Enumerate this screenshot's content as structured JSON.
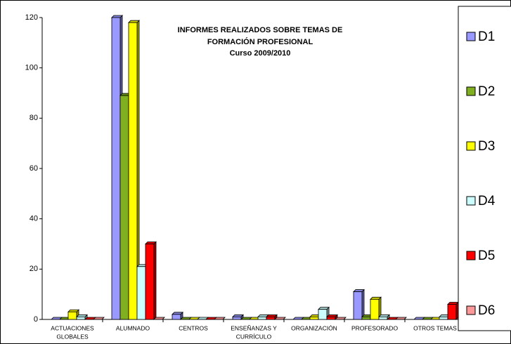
{
  "chart_data": {
    "type": "bar",
    "title": [
      "INFORMES REALIZADOS SOBRE TEMAS DE",
      "FORMACIÓN PROFESIONAL"
    ],
    "subtitle": "Curso 2009/2010",
    "categories": [
      [
        "ACTUACIONES",
        "GLOBALES"
      ],
      [
        "ALUMNADO"
      ],
      [
        "CENTROS"
      ],
      [
        "ENSEÑANZAS Y",
        "CURRÍCULO"
      ],
      [
        "ORGANIZACIÓN"
      ],
      [
        "PROFESORADO"
      ],
      [
        "OTROS TEMAS"
      ]
    ],
    "series": [
      {
        "name": "D1",
        "color": "#9999ff",
        "values": [
          0,
          120,
          2,
          1,
          0,
          11,
          0
        ]
      },
      {
        "name": "D2",
        "color": "#80b020",
        "values": [
          0,
          89,
          0,
          0,
          0,
          1,
          0
        ]
      },
      {
        "name": "D3",
        "color": "#ffff00",
        "values": [
          3,
          118,
          0,
          0,
          1,
          8,
          0
        ]
      },
      {
        "name": "D4",
        "color": "#ccffff",
        "values": [
          1,
          21,
          0,
          1,
          4,
          1,
          1
        ]
      },
      {
        "name": "D5",
        "color": "#ff0000",
        "values": [
          0,
          30,
          0,
          1,
          1,
          0,
          6
        ]
      },
      {
        "name": "D6",
        "color": "#ff9999",
        "values": [
          0,
          0,
          0,
          0,
          0,
          0,
          0
        ]
      }
    ],
    "ylim": [
      0,
      120
    ],
    "yticks": [
      0,
      20,
      40,
      60,
      80,
      100,
      120
    ],
    "legend": "right"
  }
}
